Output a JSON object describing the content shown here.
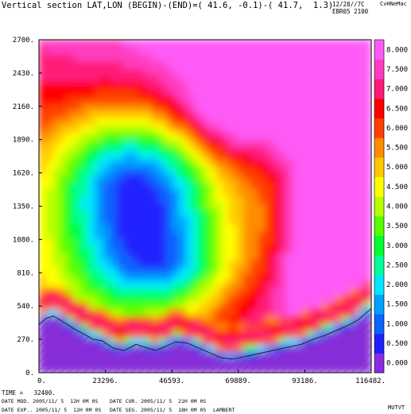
{
  "header": {
    "title": "Vertical section LAT,LON (BEGIN)-(END)=( 41.6, -0.1)-( 41.7,  1.3)",
    "stamp_date": "12/28//7C",
    "stamp_id": "EBR05 2100",
    "stamp_tag": "CvHNeMac"
  },
  "footer": {
    "time": "TIME =   32400.",
    "date_mod": "DATE MOD. 2005/11/ 5  12H 0M 0S",
    "date_cur": "DATE CUR. 2005/11/ 5  21H 0M 0S",
    "date_exp": "DATE EXP.. 2005/11/ 5  12H 0M 0S",
    "date_seg": "DATE SEG. 2005/11/ 5  18H 0M 0S",
    "projection": "LAMBERT",
    "code": "MUTVT"
  },
  "chart_data": {
    "type": "heatmap",
    "title": "Vertical section LAT,LON (BEGIN)-(END)=( 41.6, -0.1)-( 41.7,  1.3)",
    "xlabel": "",
    "ylabel": "",
    "xlim": [
      0,
      116482
    ],
    "ylim": [
      0,
      2700
    ],
    "x_tick_labels": [
      "0.",
      "23296.",
      "46593.",
      "69889.",
      "93186.",
      "116482."
    ],
    "y_tick_labels": [
      "0.",
      "270.",
      "540.",
      "810.",
      "1080.",
      "1350.",
      "1620.",
      "1890.",
      "2160.",
      "2430.",
      "2700."
    ],
    "colorbar": {
      "levels": [
        0.0,
        0.5,
        1.0,
        1.5,
        2.0,
        2.5,
        3.0,
        3.5,
        4.0,
        4.5,
        5.0,
        5.5,
        6.0,
        6.5,
        7.0,
        7.5,
        8.0
      ],
      "labels": [
        "0.000",
        "0.500",
        "1.000",
        "1.500",
        "2.000",
        "2.500",
        "3.000",
        "3.500",
        "4.000",
        "4.500",
        "5.000",
        "5.500",
        "6.000",
        "6.500",
        "7.000",
        "7.500",
        "8.000"
      ],
      "colors": [
        "#8a2be2",
        "#2020ff",
        "#0a64ff",
        "#00a0ff",
        "#00e6ff",
        "#00ff9a",
        "#00ff30",
        "#54ff00",
        "#b4ff00",
        "#ffff00",
        "#ffc800",
        "#ff8c00",
        "#ff4000",
        "#ff0000",
        "#ff1a78",
        "#ff3cc0",
        "#ff5af5"
      ]
    },
    "terrain_profile": {
      "x": [
        0,
        2500,
        5000,
        8000,
        12000,
        16000,
        19000,
        22000,
        26000,
        30000,
        34000,
        38000,
        41000,
        44000,
        48000,
        52000,
        56000,
        60000,
        64000,
        68000,
        72000,
        76000,
        80000,
        84000,
        88000,
        92000,
        96000,
        100000,
        104000,
        108000,
        112000,
        116482
      ],
      "y": [
        390,
        440,
        460,
        420,
        360,
        310,
        270,
        260,
        200,
        180,
        230,
        200,
        180,
        210,
        250,
        240,
        200,
        160,
        120,
        110,
        130,
        150,
        170,
        190,
        210,
        230,
        270,
        300,
        340,
        380,
        430,
        520
      ]
    }
  }
}
